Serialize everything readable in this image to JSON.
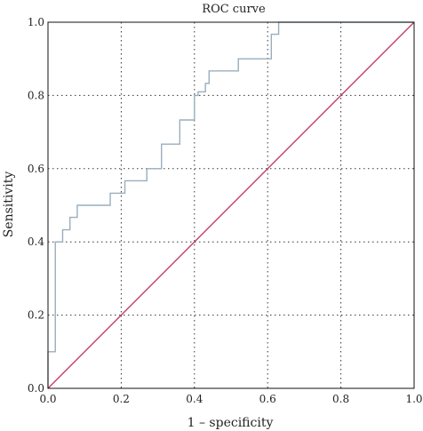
{
  "chart_data": {
    "type": "line",
    "title": "ROC curve",
    "xlabel": "1 – specificity",
    "ylabel": "Sensitivity",
    "xlim": [
      0,
      1
    ],
    "ylim": [
      0,
      1
    ],
    "xticks": [
      "0.0",
      "0.2",
      "0.4",
      "0.6",
      "0.8",
      "1.0"
    ],
    "yticks": [
      "0.0",
      "0.2",
      "0.4",
      "0.6",
      "0.8",
      "1.0"
    ],
    "grid": true,
    "series": [
      {
        "type": "step",
        "color": "#9aaebd",
        "x": [
          0,
          0,
          0.02,
          0.02,
          0.04,
          0.04,
          0.06,
          0.06,
          0.08,
          0.08,
          0.17,
          0.17,
          0.21,
          0.21,
          0.27,
          0.27,
          0.31,
          0.31,
          0.36,
          0.36,
          0.4,
          0.4,
          0.41,
          0.41,
          0.43,
          0.43,
          0.44,
          0.44,
          0.52,
          0.52,
          0.61,
          0.61,
          0.63,
          0.63,
          1.0
        ],
        "y": [
          0,
          0.1,
          0.1,
          0.4,
          0.4,
          0.433,
          0.433,
          0.467,
          0.467,
          0.5,
          0.5,
          0.533,
          0.533,
          0.567,
          0.567,
          0.6,
          0.6,
          0.667,
          0.667,
          0.733,
          0.733,
          0.8,
          0.8,
          0.81,
          0.81,
          0.833,
          0.833,
          0.867,
          0.867,
          0.9,
          0.9,
          0.967,
          0.967,
          1.0,
          1.0
        ]
      },
      {
        "type": "diagonal",
        "color": "#c2406a",
        "x": [
          0,
          1
        ],
        "y": [
          0,
          1
        ]
      }
    ]
  }
}
